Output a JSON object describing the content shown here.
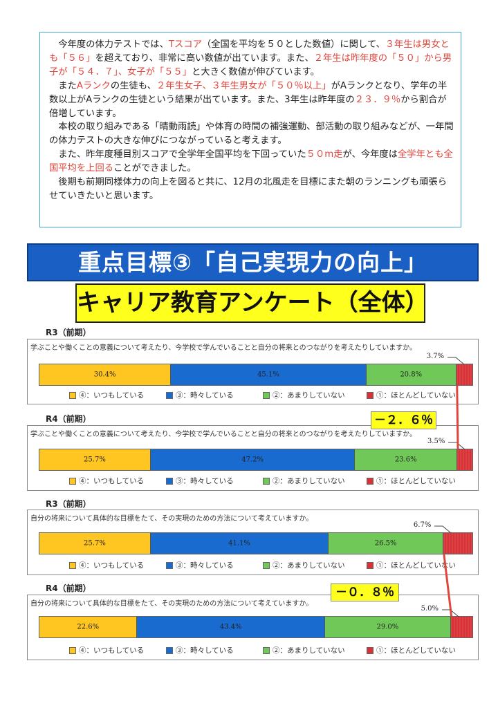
{
  "intro": {
    "p1_a": "今年度の体力テストでは、",
    "p1_b": "Tスコア",
    "p1_c": "（全国を平均を５０とした数値）に関して、",
    "p1_d": "３年生は男女とも「５６」",
    "p1_e": "を超えており、非常に高い数値が出ています。また、",
    "p1_f": "２年生は昨年度の「５０」から男子が「５４．７」、女子が「５５」",
    "p1_g": "と大きく数値が伸びています。",
    "p2_a": "また",
    "p2_b": "Aランク",
    "p2_c": "の生徒も、",
    "p2_d": "２年生女子、３年生男女が「５０％以上」",
    "p2_e": "がAランクとなり、学年の半数以上がAランクの生徒という結果が出ています。また、3年生は昨年度の",
    "p2_f": "２３．９％",
    "p2_g": "から割合が倍増しています。",
    "p3": "本校の取り組みである「晴動雨読」や体育の時間の補強運動、部活動の取り組みなどが、一年間の体力テストの大きな伸びにつながっていると考えます。",
    "p4_a": "また、昨年度種目別スコアで全学年全国平均を下回っていた",
    "p4_b": "５０m走",
    "p4_c": "が、今年度は",
    "p4_d": "全学年とも全国平均を上回る",
    "p4_e": "ことができました。",
    "p5": "後期も前期同様体力の向上を図ると共に、12月の北風走を目標にまた朝のランニングも頑張らせていきたいと思います。"
  },
  "banner1": "重点目標③「自己実現力の向上」",
  "banner2": "キャリア教育アンケート（全体）",
  "colors": {
    "always": "#ffc520",
    "sometimes": "#1a6bd0",
    "rarely": "#70c858",
    "never": "#d83236",
    "diff_line": "#e0463c"
  },
  "differences": [
    "－２．６％",
    "－０．８％"
  ],
  "chart_data": [
    {
      "type": "bar",
      "title": "R3（前期）",
      "question": "学ぶことや働くことの意義について考えたり、今学校で学んでいることと自分の将来とのつながりを考えたりしていますか。",
      "series": [
        {
          "name": "④：いつもしている",
          "value": 30.4,
          "label": "30.4%"
        },
        {
          "name": "③：時々している",
          "value": 45.1,
          "label": "45.1%"
        },
        {
          "name": "②：あまりしていない",
          "value": 20.8,
          "label": "20.8%"
        },
        {
          "name": "①：ほとんどしていない",
          "value": 3.7,
          "label": "3.7%"
        }
      ]
    },
    {
      "type": "bar",
      "title": "R4（前期）",
      "question": "学ぶことや働くことの意義について考えたり、今学校で学んでいることと自分の将来とのつながりを考えたりしていますか。",
      "series": [
        {
          "name": "④：いつもしている",
          "value": 25.7,
          "label": "25.7%"
        },
        {
          "name": "③：時々している",
          "value": 47.2,
          "label": "47.2%"
        },
        {
          "name": "②：あまりしていない",
          "value": 23.6,
          "label": "23.6%"
        },
        {
          "name": "①：ほとんどしていない",
          "value": 3.5,
          "label": "3.5%"
        }
      ]
    },
    {
      "type": "bar",
      "title": "R3（前期）",
      "question": "自分の将来について具体的な目標をたて、その実現のための方法について考えていますか。",
      "series": [
        {
          "name": "④：いつもしている",
          "value": 25.7,
          "label": "25.7%"
        },
        {
          "name": "③：時々している",
          "value": 41.1,
          "label": "41.1%"
        },
        {
          "name": "②：あまりしていない",
          "value": 26.5,
          "label": "26.5%"
        },
        {
          "name": "①：ほとんどしていない",
          "value": 6.7,
          "label": "6.7%"
        }
      ]
    },
    {
      "type": "bar",
      "title": "R4（前期）",
      "question": "自分の将来について具体的な目標をたて、その実現のための方法について考えていますか。",
      "series": [
        {
          "name": "④：いつもしている",
          "value": 22.6,
          "label": "22.6%"
        },
        {
          "name": "③：時々している",
          "value": 43.4,
          "label": "43.4%"
        },
        {
          "name": "②：あまりしていない",
          "value": 29.0,
          "label": "29.0%"
        },
        {
          "name": "①：ほとんどしていない",
          "value": 5.0,
          "label": "5.0%"
        }
      ]
    }
  ]
}
